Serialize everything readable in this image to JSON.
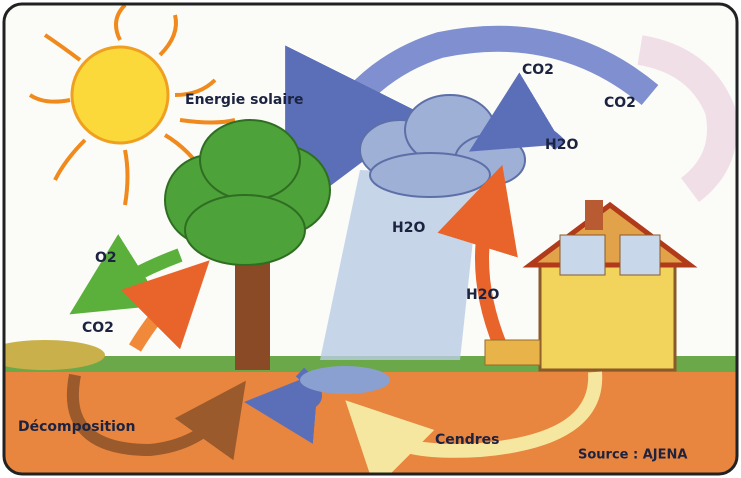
{
  "labels": [
    "Energie solaire",
    "CO2",
    "CO2",
    "H2O",
    "H2O",
    "H2O",
    "O2",
    "CO2",
    "Décomposition",
    "Cendres",
    "Source : AJENA"
  ]
}
